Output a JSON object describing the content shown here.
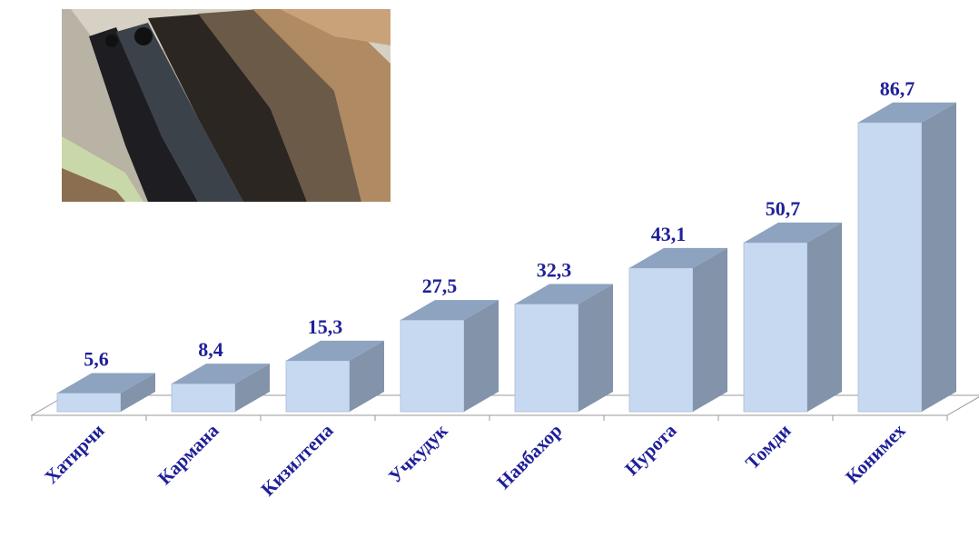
{
  "chart_data": {
    "type": "bar",
    "style": "3d",
    "categories": [
      "Хатирчи",
      "Кармана",
      "Кизилтепа",
      "Учкудук",
      "Навбахор",
      "Нурота",
      "Томди",
      "Конимех"
    ],
    "values": [
      5.6,
      8.4,
      15.3,
      27.5,
      32.3,
      43.1,
      50.7,
      86.7
    ],
    "value_labels": [
      "5,6",
      "8,4",
      "15,3",
      "27,5",
      "32,3",
      "43,1",
      "50,7",
      "86,7"
    ],
    "ylim": [
      0,
      90
    ],
    "grid": false,
    "legend": "none",
    "colors": {
      "bar_front": "#c6d9f1",
      "bar_top": "#8da3bf",
      "bar_side": "#8293aa",
      "floor": "#ffffff",
      "label_text": "#1f1f99"
    }
  },
  "photo": {
    "icon": "astrakhan-pelts-photo"
  }
}
